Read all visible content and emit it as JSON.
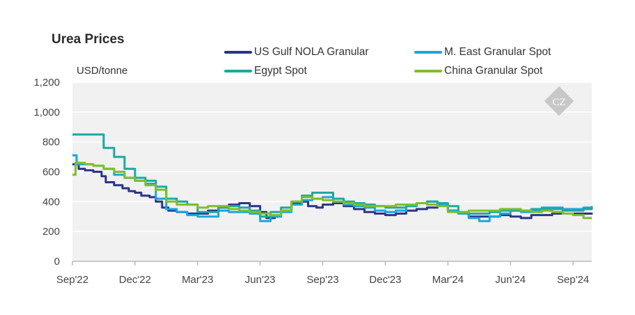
{
  "title": "Urea Prices",
  "unit": "USD/tonne",
  "legend": [
    {
      "label": "US Gulf NOLA Granular",
      "color": "#2b3585"
    },
    {
      "label": "M. East Granular Spot",
      "color": "#1aa6de"
    },
    {
      "label": "Egypt Spot",
      "color": "#1fa8a0"
    },
    {
      "label": "China Granular Spot",
      "color": "#7dbf2b"
    }
  ],
  "watermark_text": "CZ",
  "chart_data": {
    "type": "line",
    "ylim": [
      0,
      1200
    ],
    "yticks": [
      0,
      200,
      400,
      600,
      800,
      1000,
      1200
    ],
    "ytick_labels": [
      "0",
      "200",
      "400",
      "600",
      "800",
      "1,000",
      "1,200"
    ],
    "xlim": [
      0,
      24.9
    ],
    "xticks": [
      0,
      3,
      6,
      9,
      12,
      15,
      18,
      21,
      24
    ],
    "xtick_labels": [
      "Sep'22",
      "Dec'22",
      "Mar'23",
      "Jun'23",
      "Sep'23",
      "Dec'23",
      "Mar'24",
      "Jun'24",
      "Sep'24"
    ],
    "x_unit": "months since Sep 2022",
    "grid": true,
    "legend_position": "top",
    "series": [
      {
        "name": "US Gulf NOLA Granular",
        "color": "#2b3585",
        "x": [
          0,
          0.3,
          0.6,
          1.0,
          1.4,
          1.6,
          2.0,
          2.4,
          2.7,
          3.0,
          3.3,
          3.7,
          4.0,
          4.3,
          4.6,
          5.0,
          5.5,
          6.0,
          6.5,
          7.0,
          7.5,
          8.0,
          8.5,
          9.0,
          9.3,
          9.7,
          10.0,
          10.5,
          11.0,
          11.3,
          11.7,
          12.0,
          12.5,
          13.0,
          13.5,
          14.0,
          14.5,
          15.0,
          15.5,
          16.0,
          16.5,
          17.0,
          17.5,
          18.0,
          18.5,
          19.0,
          19.5,
          20.0,
          20.5,
          21.0,
          21.5,
          22.0,
          22.5,
          23.0,
          23.5,
          24.0,
          24.5,
          24.9
        ],
        "y": [
          650,
          620,
          610,
          600,
          570,
          530,
          510,
          490,
          470,
          460,
          440,
          430,
          400,
          360,
          340,
          330,
          320,
          320,
          340,
          360,
          380,
          390,
          370,
          330,
          290,
          300,
          340,
          390,
          400,
          370,
          360,
          380,
          390,
          370,
          350,
          330,
          320,
          310,
          320,
          340,
          350,
          360,
          380,
          340,
          320,
          300,
          300,
          300,
          310,
          300,
          290,
          310,
          310,
          320,
          320,
          320,
          320,
          325
        ]
      },
      {
        "name": "M. East Granular Spot",
        "color": "#1aa6de",
        "x": [
          0,
          0.2,
          0.5,
          1.0,
          1.5,
          2.0,
          2.5,
          3.0,
          3.5,
          4.0,
          4.5,
          5.0,
          5.5,
          6.0,
          6.5,
          7.0,
          7.5,
          8.0,
          8.5,
          9.0,
          9.5,
          10.0,
          10.5,
          11.0,
          11.5,
          12.0,
          12.5,
          13.0,
          13.5,
          14.0,
          14.5,
          15.0,
          15.5,
          16.0,
          16.5,
          17.0,
          17.5,
          18.0,
          18.5,
          19.0,
          19.5,
          20.0,
          20.5,
          21.0,
          21.5,
          22.0,
          22.5,
          23.0,
          23.5,
          24.0,
          24.5,
          24.9
        ],
        "y": [
          710,
          650,
          650,
          640,
          620,
          580,
          560,
          540,
          520,
          420,
          350,
          330,
          310,
          300,
          300,
          340,
          330,
          330,
          320,
          270,
          300,
          330,
          380,
          410,
          420,
          430,
          400,
          380,
          370,
          360,
          340,
          330,
          340,
          370,
          390,
          400,
          380,
          340,
          320,
          290,
          270,
          300,
          320,
          340,
          330,
          340,
          360,
          360,
          350,
          350,
          360,
          370
        ]
      },
      {
        "name": "Egypt Spot",
        "color": "#1fa8a0",
        "x": [
          0,
          0.5,
          1.0,
          1.5,
          2.0,
          2.5,
          3.0,
          3.5,
          4.0,
          4.5,
          5.0,
          5.5,
          6.0,
          6.5,
          7.0,
          7.5,
          8.0,
          8.5,
          9.0,
          9.5,
          10.0,
          10.5,
          11.0,
          11.5,
          12.0,
          12.5,
          13.0,
          13.5,
          14.0,
          14.5,
          15.0,
          15.5,
          16.0,
          16.5,
          17.0,
          17.5,
          18.0,
          18.5,
          19.0,
          19.5,
          20.0,
          20.5,
          21.0,
          21.5,
          22.0,
          22.5,
          23.0,
          23.5,
          24.0,
          24.5,
          24.9
        ],
        "y": [
          850,
          850,
          850,
          760,
          700,
          620,
          560,
          540,
          500,
          420,
          400,
          380,
          330,
          330,
          360,
          370,
          360,
          340,
          300,
          330,
          360,
          400,
          440,
          460,
          460,
          420,
          400,
          390,
          380,
          370,
          360,
          360,
          370,
          390,
          400,
          390,
          370,
          330,
          320,
          320,
          330,
          340,
          340,
          340,
          350,
          350,
          350,
          340,
          340,
          350,
          365
        ]
      },
      {
        "name": "China Granular Spot",
        "color": "#7dbf2b",
        "x": [
          0,
          0.15,
          0.3,
          0.6,
          1.0,
          1.5,
          2.0,
          2.5,
          3.0,
          3.5,
          4.0,
          4.5,
          5.0,
          5.5,
          6.0,
          6.5,
          7.0,
          7.5,
          8.0,
          8.5,
          9.0,
          9.5,
          10.0,
          10.5,
          11.0,
          11.5,
          12.0,
          12.5,
          13.0,
          13.5,
          14.0,
          14.5,
          15.0,
          15.5,
          16.0,
          16.5,
          17.0,
          17.5,
          18.0,
          18.5,
          19.0,
          19.5,
          20.0,
          20.5,
          21.0,
          21.5,
          22.0,
          22.5,
          23.0,
          23.5,
          24.0,
          24.5,
          24.9
        ],
        "y": [
          580,
          660,
          660,
          650,
          640,
          620,
          600,
          560,
          540,
          510,
          480,
          400,
          380,
          380,
          360,
          370,
          370,
          350,
          340,
          330,
          320,
          310,
          340,
          400,
          430,
          420,
          410,
          400,
          390,
          380,
          370,
          370,
          370,
          380,
          380,
          390,
          380,
          370,
          330,
          330,
          340,
          340,
          340,
          350,
          350,
          340,
          330,
          340,
          330,
          320,
          310,
          290,
          290
        ]
      }
    ]
  }
}
